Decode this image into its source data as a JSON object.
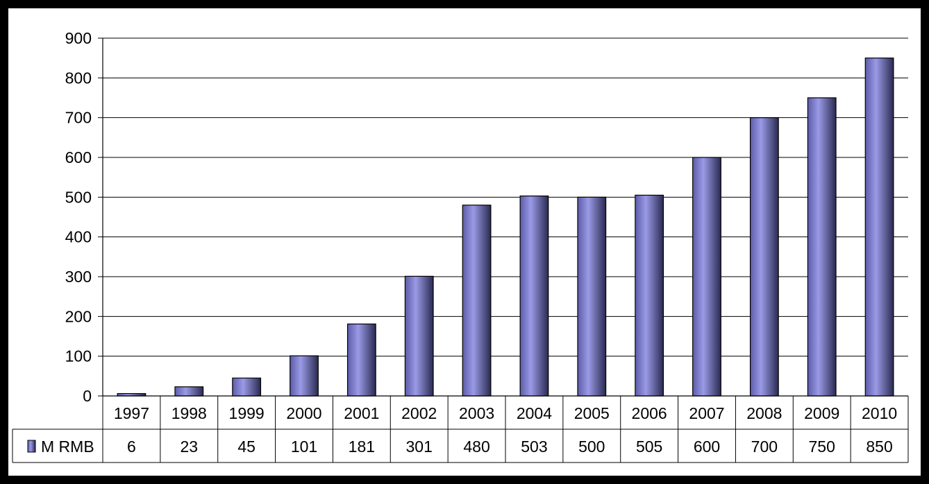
{
  "chart_data": {
    "type": "bar",
    "categories": [
      "1997",
      "1998",
      "1999",
      "2000",
      "2001",
      "2002",
      "2003",
      "2004",
      "2005",
      "2006",
      "2007",
      "2008",
      "2009",
      "2010"
    ],
    "series": [
      {
        "name": "M RMB",
        "values": [
          6,
          23,
          45,
          101,
          181,
          301,
          480,
          503,
          500,
          505,
          600,
          700,
          750,
          850
        ]
      }
    ],
    "ylim": [
      0,
      900
    ],
    "yticks": [
      0,
      100,
      200,
      300,
      400,
      500,
      600,
      700,
      800,
      900
    ],
    "grid": true,
    "data_table": true,
    "colors": {
      "bar_edge": "#5c5ca8",
      "bar_center": "#9a9ae6",
      "bar_dark": "#2a2a52",
      "frame": "#000000",
      "background": "#ffffff"
    }
  }
}
